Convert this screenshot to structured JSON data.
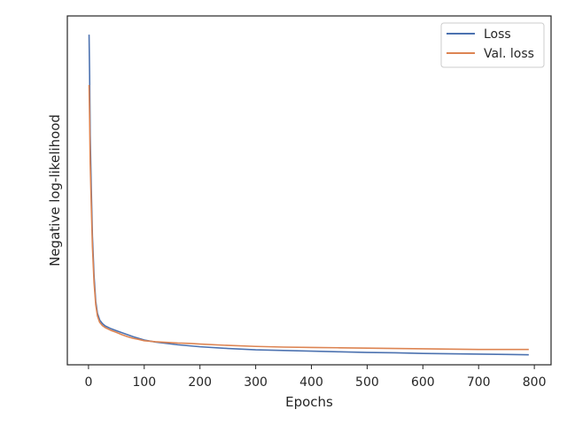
{
  "chart_data": {
    "type": "line",
    "title": "",
    "xlabel": "Epochs",
    "ylabel": "Negative log-likelihood",
    "xlim": [
      -38,
      830
    ],
    "ylim": [
      0,
      1.0
    ],
    "x_ticks": [
      0,
      100,
      200,
      300,
      400,
      500,
      600,
      700,
      800
    ],
    "y_ticks_labeled": false,
    "grid": false,
    "legend": "top-right",
    "series": [
      {
        "name": "Loss",
        "color": "#4c72b0",
        "x": [
          1,
          2,
          3,
          5,
          7,
          10,
          13,
          16,
          20,
          25,
          30,
          40,
          50,
          60,
          70,
          80,
          90,
          100,
          120,
          140,
          160,
          180,
          200,
          250,
          300,
          350,
          400,
          450,
          500,
          550,
          600,
          650,
          700,
          750,
          790
        ],
        "y": [
          0.96,
          0.84,
          0.66,
          0.5,
          0.36,
          0.24,
          0.165,
          0.13,
          0.11,
          0.099,
          0.092,
          0.084,
          0.078,
          0.072,
          0.066,
          0.06,
          0.055,
          0.05,
          0.044,
          0.04,
          0.036,
          0.033,
          0.03,
          0.025,
          0.021,
          0.019,
          0.017,
          0.015,
          0.013,
          0.012,
          0.01,
          0.009,
          0.008,
          0.007,
          0.006
        ]
      },
      {
        "name": "Val. loss",
        "color": "#dd8452",
        "x": [
          1,
          2,
          3,
          5,
          7,
          10,
          13,
          16,
          20,
          25,
          30,
          40,
          50,
          60,
          70,
          80,
          90,
          100,
          120,
          140,
          160,
          180,
          200,
          250,
          300,
          350,
          400,
          450,
          500,
          550,
          600,
          650,
          700,
          750,
          790
        ],
        "y": [
          0.81,
          0.71,
          0.58,
          0.45,
          0.33,
          0.22,
          0.155,
          0.122,
          0.103,
          0.093,
          0.087,
          0.079,
          0.073,
          0.066,
          0.06,
          0.055,
          0.052,
          0.048,
          0.045,
          0.043,
          0.041,
          0.04,
          0.038,
          0.034,
          0.031,
          0.029,
          0.028,
          0.027,
          0.026,
          0.025,
          0.024,
          0.023,
          0.022,
          0.022,
          0.022
        ]
      }
    ]
  }
}
